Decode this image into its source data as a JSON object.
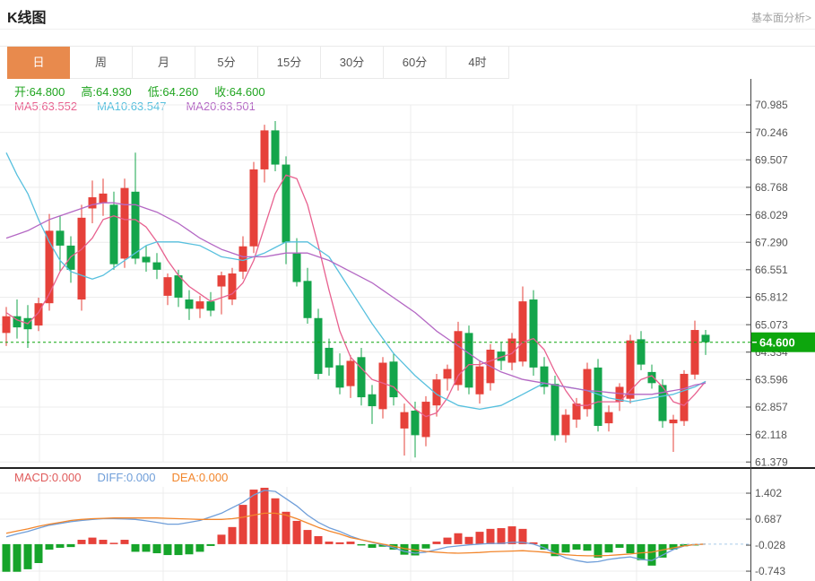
{
  "header": {
    "title": "K线图",
    "link_text": "基本面分析>"
  },
  "tabs": {
    "items": [
      "日",
      "周",
      "月",
      "5分",
      "15分",
      "30分",
      "60分",
      "4时"
    ],
    "active_index": 0
  },
  "ohlc_legend": {
    "open_label": "开:",
    "open_value": "64.800",
    "high_label": "高:",
    "high_value": "64.930",
    "low_label": "低:",
    "low_value": "64.260",
    "close_label": "收:",
    "close_value": "64.600"
  },
  "ma_legend": {
    "ma5_label": "MA5: ",
    "ma5_value": "63.552",
    "ma10_label": "MA10: ",
    "ma10_value": "63.547",
    "ma20_label": "MA20: ",
    "ma20_value": "63.501"
  },
  "macd_legend": {
    "macd_label": "MACD:",
    "macd_value": "0.000",
    "diff_label": "DIFF:",
    "diff_value": "0.000",
    "dea_label": "DEA:",
    "dea_value": "0.000"
  },
  "price_tag": {
    "value": "64.600"
  },
  "colors": {
    "up": "#e6413a",
    "down": "#14a54b",
    "tag_green": "#0da60d",
    "dashed": "#0da60d",
    "ma5": "#e8618f",
    "ma10": "#58c0de",
    "ma20": "#b468c4",
    "diff_line": "#6f9ed9",
    "dea_line": "#f2862c",
    "macd_up": "#e6413a",
    "macd_down": "#16a42a",
    "ohlc_text": "#1fa41f",
    "macd_text": "#e05b5b",
    "tab_active": "#e88a4d",
    "grid": "#ececec",
    "axis": "#444444",
    "label": "#555555",
    "zero_dash": "#a9cbe9"
  },
  "chart_data": {
    "type": "candlestick",
    "main_panel": {
      "y_ticks": [
        70.985,
        70.246,
        69.507,
        68.768,
        68.029,
        67.29,
        66.551,
        65.812,
        65.073,
        64.334,
        63.596,
        62.857,
        62.118,
        61.379
      ],
      "current_price": 64.6,
      "candles_ohlc": [
        [
          64.85,
          65.55,
          64.5,
          65.3
        ],
        [
          65.3,
          65.75,
          64.7,
          65.0
        ],
        [
          65.25,
          65.6,
          64.45,
          64.95
        ],
        [
          65.05,
          65.8,
          64.9,
          65.65
        ],
        [
          65.65,
          68.05,
          65.45,
          67.6
        ],
        [
          67.6,
          68.0,
          66.5,
          67.2
        ],
        [
          67.2,
          67.45,
          66.2,
          66.55
        ],
        [
          65.75,
          68.3,
          65.45,
          67.95
        ],
        [
          68.2,
          68.95,
          67.8,
          68.5
        ],
        [
          68.35,
          69.0,
          68.0,
          68.6
        ],
        [
          68.3,
          68.65,
          66.55,
          66.7
        ],
        [
          66.85,
          69.0,
          66.6,
          68.75
        ],
        [
          68.65,
          69.7,
          66.7,
          66.85
        ],
        [
          66.9,
          67.2,
          66.5,
          66.75
        ],
        [
          66.75,
          67.0,
          66.3,
          66.55
        ],
        [
          65.85,
          66.45,
          65.6,
          66.35
        ],
        [
          66.4,
          66.55,
          65.55,
          65.8
        ],
        [
          65.75,
          66.0,
          65.2,
          65.5
        ],
        [
          65.5,
          65.85,
          65.25,
          65.7
        ],
        [
          65.7,
          65.95,
          65.3,
          65.45
        ],
        [
          66.1,
          66.5,
          65.35,
          66.4
        ],
        [
          65.75,
          66.6,
          65.6,
          66.45
        ],
        [
          66.5,
          67.45,
          66.3,
          67.18
        ],
        [
          67.18,
          69.45,
          67.0,
          69.25
        ],
        [
          69.25,
          70.45,
          68.9,
          70.3
        ],
        [
          70.3,
          70.55,
          69.2,
          69.38
        ],
        [
          69.38,
          69.6,
          66.7,
          67.28
        ],
        [
          67.0,
          67.4,
          66.1,
          66.22
        ],
        [
          66.25,
          66.6,
          65.1,
          65.25
        ],
        [
          65.25,
          65.5,
          63.6,
          63.75
        ],
        [
          64.45,
          64.7,
          63.7,
          63.92
        ],
        [
          63.98,
          64.3,
          63.2,
          63.38
        ],
        [
          63.42,
          64.25,
          63.1,
          64.1
        ],
        [
          64.2,
          64.45,
          62.9,
          63.12
        ],
        [
          63.2,
          63.45,
          62.4,
          62.88
        ],
        [
          62.8,
          64.2,
          62.55,
          64.05
        ],
        [
          64.08,
          64.3,
          62.9,
          63.12
        ],
        [
          62.28,
          62.95,
          61.55,
          62.72
        ],
        [
          62.76,
          63.0,
          61.5,
          62.1
        ],
        [
          62.05,
          63.15,
          61.8,
          63.0
        ],
        [
          62.9,
          63.75,
          62.6,
          63.6
        ],
        [
          63.62,
          64.0,
          63.3,
          63.88
        ],
        [
          63.45,
          65.15,
          63.3,
          64.9
        ],
        [
          64.85,
          65.05,
          63.2,
          63.38
        ],
        [
          63.2,
          64.1,
          62.95,
          63.95
        ],
        [
          63.5,
          64.55,
          63.3,
          64.4
        ],
        [
          64.35,
          64.6,
          63.85,
          64.1
        ],
        [
          64.05,
          64.85,
          63.85,
          64.7
        ],
        [
          64.08,
          66.1,
          63.95,
          65.7
        ],
        [
          65.75,
          66.0,
          63.7,
          63.92
        ],
        [
          63.95,
          64.2,
          63.2,
          63.4
        ],
        [
          63.48,
          63.7,
          61.95,
          62.1
        ],
        [
          62.1,
          62.8,
          61.9,
          62.65
        ],
        [
          62.52,
          63.1,
          62.3,
          62.95
        ],
        [
          62.8,
          64.05,
          62.6,
          63.88
        ],
        [
          63.92,
          64.15,
          62.2,
          62.35
        ],
        [
          62.42,
          62.9,
          62.2,
          62.72
        ],
        [
          63.0,
          63.5,
          62.75,
          63.4
        ],
        [
          63.08,
          64.8,
          62.95,
          64.65
        ],
        [
          64.68,
          64.9,
          63.85,
          64.0
        ],
        [
          63.8,
          64.0,
          63.35,
          63.5
        ],
        [
          63.45,
          63.6,
          62.3,
          62.48
        ],
        [
          62.42,
          62.65,
          61.65,
          62.52
        ],
        [
          62.48,
          63.85,
          62.35,
          63.75
        ],
        [
          63.73,
          65.18,
          63.6,
          64.93
        ],
        [
          64.8,
          64.93,
          64.26,
          64.6
        ]
      ],
      "ma5": [
        65.4,
        65.2,
        65.1,
        65.4,
        65.9,
        66.5,
        66.9,
        67.1,
        67.4,
        67.9,
        68.0,
        67.9,
        67.9,
        67.7,
        67.3,
        66.8,
        66.4,
        66.1,
        65.9,
        65.7,
        65.8,
        65.9,
        66.2,
        66.8,
        67.7,
        68.6,
        69.1,
        69.0,
        68.3,
        67.2,
        66.0,
        64.9,
        64.2,
        63.9,
        63.6,
        63.5,
        63.4,
        63.1,
        62.8,
        62.6,
        62.7,
        63.1,
        63.7,
        64.0,
        64.0,
        64.1,
        64.2,
        64.3,
        64.6,
        64.7,
        64.4,
        63.8,
        63.3,
        62.9,
        62.9,
        63.0,
        63.0,
        63.0,
        63.3,
        63.6,
        63.7,
        63.4,
        63.0,
        62.9,
        63.2,
        63.55
      ],
      "ma10": [
        69.7,
        69.1,
        68.6,
        67.9,
        67.3,
        66.8,
        66.5,
        66.4,
        66.3,
        66.4,
        66.6,
        66.8,
        67.0,
        67.2,
        67.3,
        67.3,
        67.3,
        67.25,
        67.2,
        67.05,
        66.9,
        66.85,
        66.8,
        66.9,
        67.0,
        67.15,
        67.3,
        67.3,
        67.3,
        67.1,
        66.9,
        66.45,
        66.0,
        65.55,
        65.1,
        64.7,
        64.3,
        64.0,
        63.7,
        63.45,
        63.2,
        63.05,
        62.9,
        62.85,
        62.8,
        62.85,
        62.9,
        63.05,
        63.2,
        63.35,
        63.5,
        63.45,
        63.4,
        63.35,
        63.3,
        63.2,
        63.1,
        63.05,
        63.0,
        63.05,
        63.1,
        63.15,
        63.2,
        63.3,
        63.4,
        63.55
      ],
      "ma20": [
        67.4,
        67.5,
        67.6,
        67.75,
        67.9,
        68.0,
        68.1,
        68.2,
        68.3,
        68.35,
        68.35,
        68.3,
        68.3,
        68.2,
        68.1,
        67.95,
        67.8,
        67.6,
        67.4,
        67.25,
        67.1,
        67.0,
        66.9,
        66.9,
        66.9,
        66.95,
        67.0,
        67.0,
        67.0,
        66.9,
        66.8,
        66.65,
        66.5,
        66.35,
        66.2,
        66.0,
        65.8,
        65.6,
        65.4,
        65.15,
        64.9,
        64.7,
        64.5,
        64.3,
        64.1,
        63.95,
        63.8,
        63.7,
        63.6,
        63.55,
        63.5,
        63.45,
        63.4,
        63.35,
        63.3,
        63.28,
        63.25,
        63.22,
        63.2,
        63.2,
        63.2,
        63.25,
        63.3,
        63.35,
        63.45,
        63.5
      ]
    },
    "macd_panel": {
      "y_ticks": [
        1.402,
        0.687,
        -0.028,
        -0.743
      ],
      "histogram": [
        -0.76,
        -0.76,
        -0.69,
        -0.52,
        -0.15,
        -0.1,
        -0.08,
        0.12,
        0.18,
        0.12,
        0.02,
        0.12,
        -0.21,
        -0.21,
        -0.25,
        -0.3,
        -0.3,
        -0.28,
        -0.21,
        -0.05,
        0.26,
        0.47,
        1.08,
        1.5,
        1.55,
        1.26,
        0.89,
        0.64,
        0.39,
        0.22,
        0.07,
        0.05,
        0.07,
        -0.02,
        -0.1,
        -0.07,
        -0.15,
        -0.29,
        -0.31,
        -0.12,
        0.07,
        0.18,
        0.3,
        0.2,
        0.34,
        0.42,
        0.44,
        0.49,
        0.42,
        0.05,
        -0.15,
        -0.33,
        -0.23,
        -0.15,
        -0.18,
        -0.37,
        -0.23,
        -0.1,
        -0.25,
        -0.44,
        -0.59,
        -0.37,
        -0.15,
        -0.06,
        -0.02,
        0.0
      ],
      "diff": [
        0.2,
        0.28,
        0.35,
        0.44,
        0.52,
        0.57,
        0.62,
        0.65,
        0.68,
        0.7,
        0.7,
        0.69,
        0.68,
        0.64,
        0.6,
        0.55,
        0.55,
        0.6,
        0.65,
        0.75,
        0.85,
        1.0,
        1.15,
        1.35,
        1.48,
        1.45,
        1.25,
        1.05,
        0.8,
        0.6,
        0.45,
        0.35,
        0.22,
        0.12,
        0.05,
        -0.02,
        -0.1,
        -0.2,
        -0.25,
        -0.22,
        -0.15,
        -0.08,
        -0.05,
        -0.02,
        0.0,
        0.02,
        0.02,
        0.05,
        0.05,
        0.0,
        -0.1,
        -0.25,
        -0.38,
        -0.45,
        -0.5,
        -0.48,
        -0.42,
        -0.38,
        -0.35,
        -0.42,
        -0.45,
        -0.3,
        -0.15,
        -0.05,
        -0.01,
        0.0
      ],
      "dea": [
        0.3,
        0.36,
        0.42,
        0.49,
        0.55,
        0.6,
        0.65,
        0.68,
        0.7,
        0.71,
        0.72,
        0.72,
        0.72,
        0.72,
        0.72,
        0.71,
        0.7,
        0.69,
        0.68,
        0.68,
        0.68,
        0.7,
        0.74,
        0.8,
        0.85,
        0.85,
        0.8,
        0.7,
        0.58,
        0.46,
        0.36,
        0.28,
        0.18,
        0.12,
        0.06,
        0.0,
        -0.06,
        -0.12,
        -0.16,
        -0.2,
        -0.22,
        -0.24,
        -0.25,
        -0.24,
        -0.23,
        -0.21,
        -0.2,
        -0.19,
        -0.18,
        -0.2,
        -0.22,
        -0.26,
        -0.29,
        -0.31,
        -0.32,
        -0.32,
        -0.31,
        -0.29,
        -0.27,
        -0.24,
        -0.22,
        -0.16,
        -0.1,
        -0.05,
        -0.01,
        0.0
      ]
    }
  }
}
